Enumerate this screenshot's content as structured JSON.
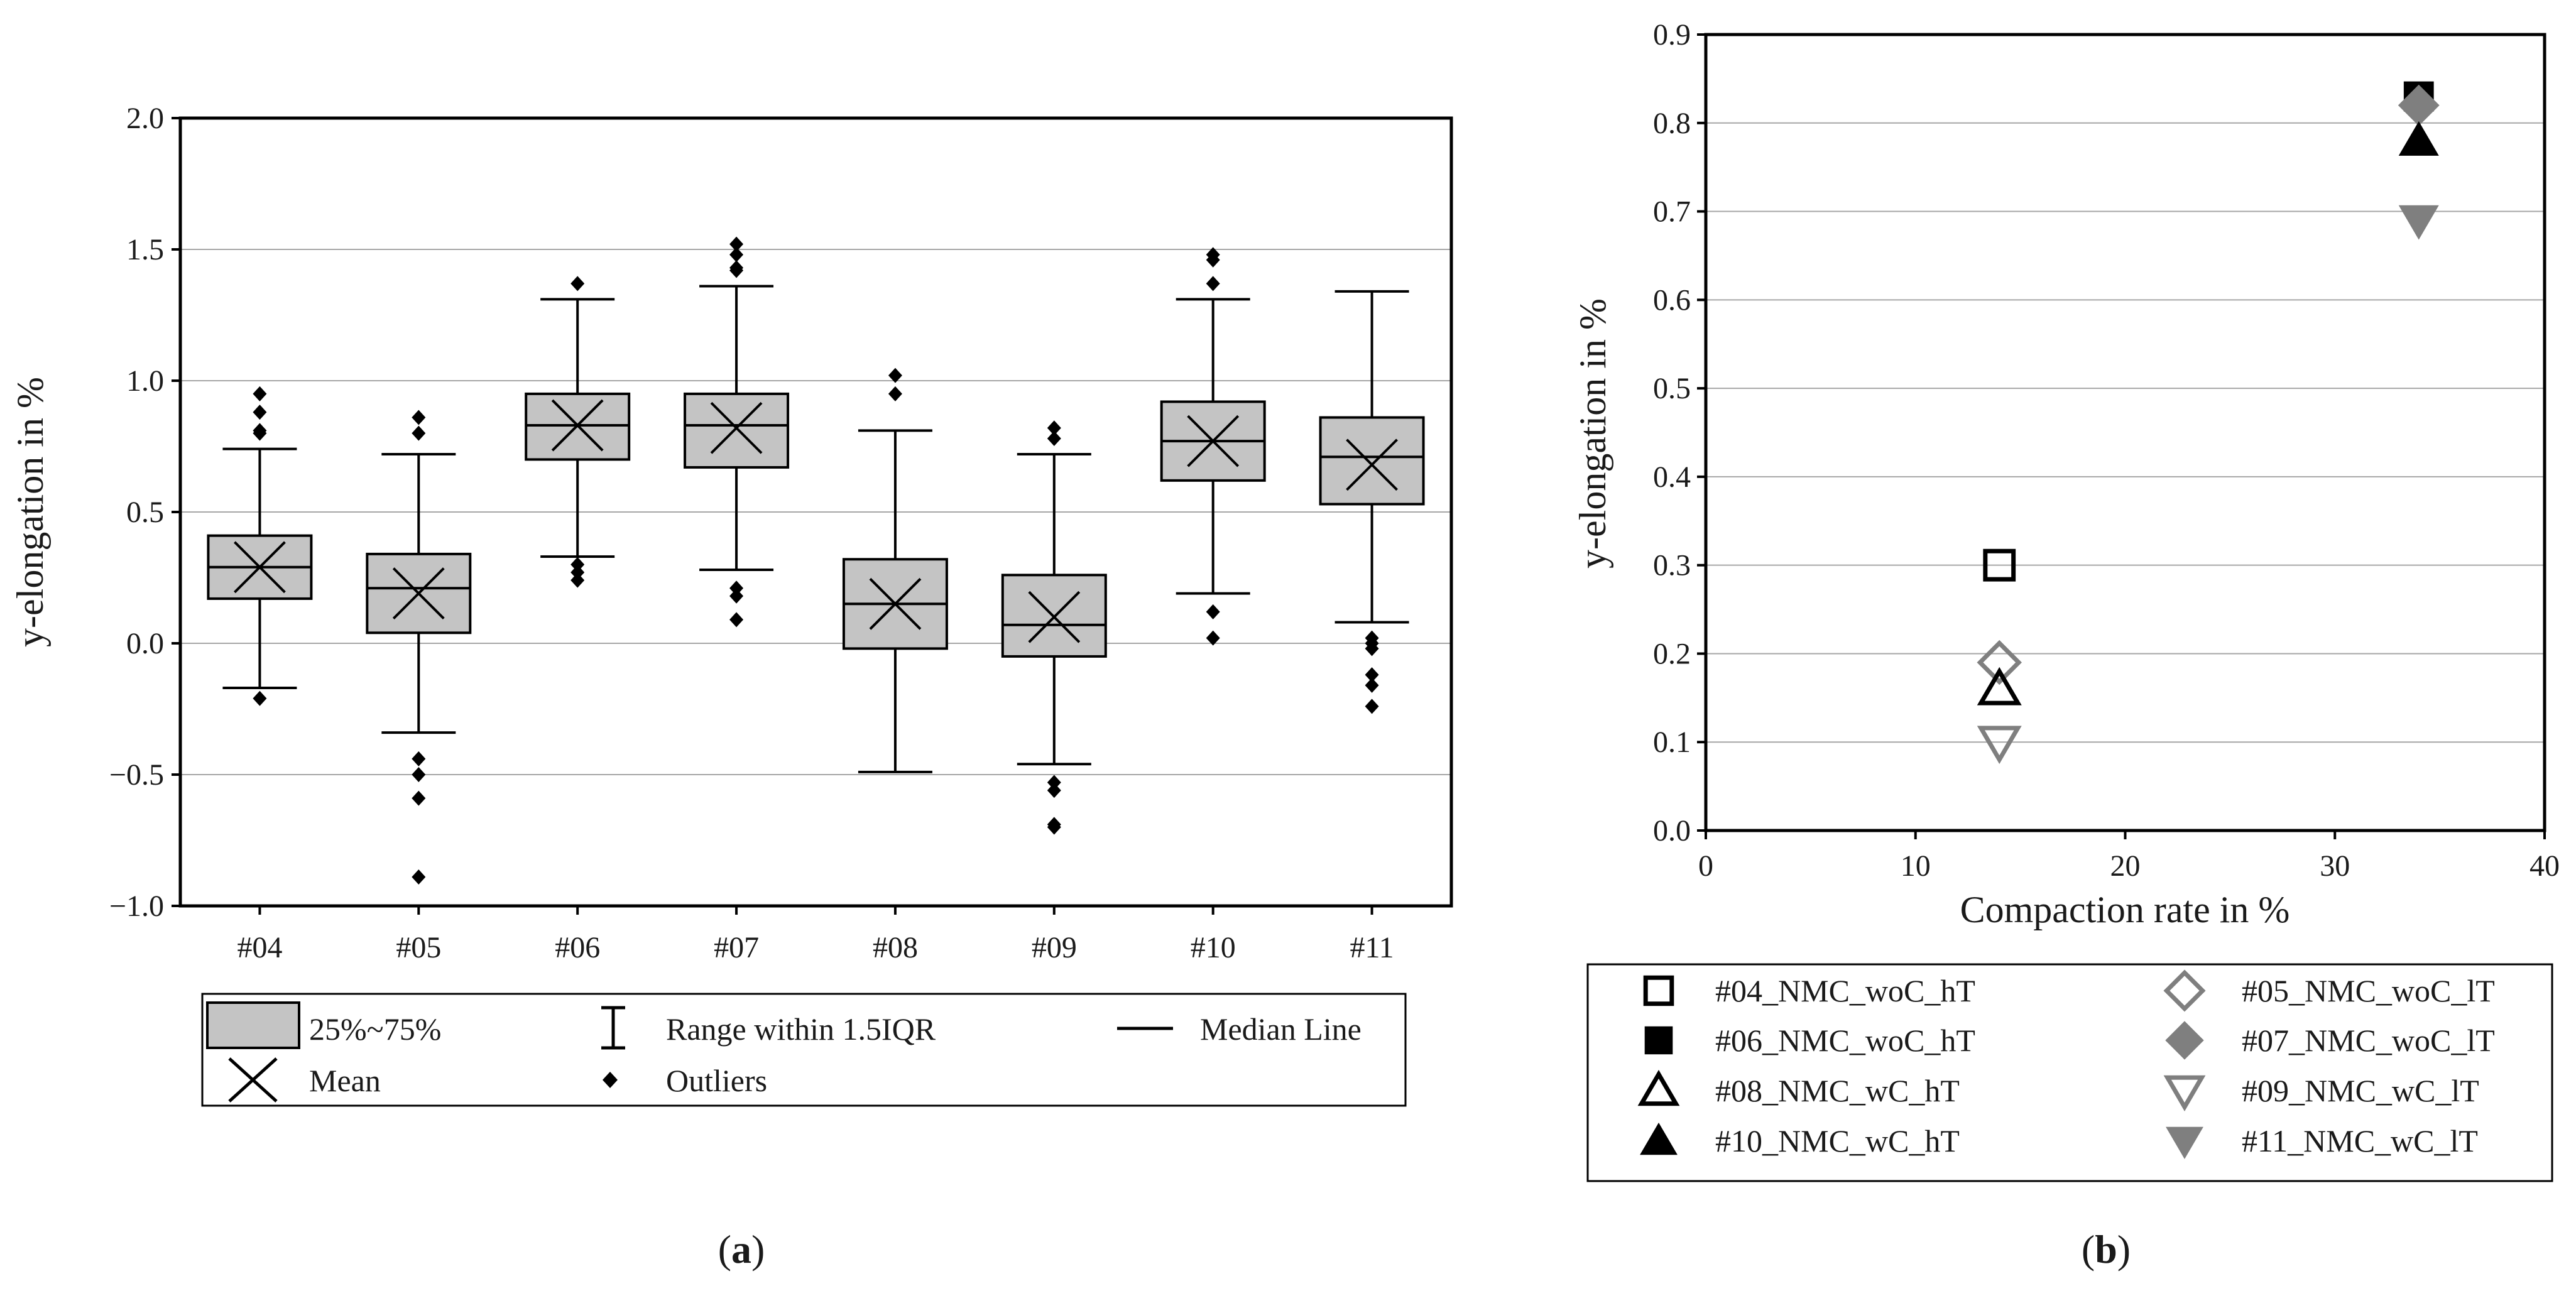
{
  "chart_data": [
    {
      "type": "box",
      "panel_label": "(a)",
      "ylabel": "y-elongation in %",
      "ylim": [
        -1.0,
        2.0
      ],
      "yticks": [
        -1.0,
        -0.5,
        0.0,
        0.5,
        1.0,
        1.5,
        2.0
      ],
      "ytick_labels": [
        "−1.0",
        "−0.5",
        "0.0",
        "0.5",
        "1.0",
        "1.5",
        "2.0"
      ],
      "grid": true,
      "categories": [
        "#04",
        "#05",
        "#06",
        "#07",
        "#08",
        "#09",
        "#10",
        "#11"
      ],
      "boxes": [
        {
          "q1": 0.17,
          "median": 0.29,
          "q3": 0.41,
          "mean": 0.29,
          "whisker_low": -0.17,
          "whisker_high": 0.74,
          "outliers": [
            0.95,
            0.88,
            0.81,
            0.8,
            -0.21
          ]
        },
        {
          "q1": 0.04,
          "median": 0.21,
          "q3": 0.34,
          "mean": 0.19,
          "whisker_low": -0.34,
          "whisker_high": 0.72,
          "outliers": [
            0.86,
            0.8,
            -0.44,
            -0.5,
            -0.59,
            -0.89
          ]
        },
        {
          "q1": 0.7,
          "median": 0.83,
          "q3": 0.95,
          "mean": 0.83,
          "whisker_low": 0.33,
          "whisker_high": 1.31,
          "outliers": [
            1.37,
            0.3,
            0.27,
            0.24
          ]
        },
        {
          "q1": 0.67,
          "median": 0.83,
          "q3": 0.95,
          "mean": 0.82,
          "whisker_low": 0.28,
          "whisker_high": 1.36,
          "outliers": [
            1.52,
            1.48,
            1.43,
            1.42,
            0.21,
            0.18,
            0.09
          ]
        },
        {
          "q1": -0.02,
          "median": 0.15,
          "q3": 0.32,
          "mean": 0.15,
          "whisker_low": -0.49,
          "whisker_high": 0.81,
          "outliers": [
            1.02,
            0.95
          ]
        },
        {
          "q1": -0.05,
          "median": 0.07,
          "q3": 0.26,
          "mean": 0.1,
          "whisker_low": -0.46,
          "whisker_high": 0.72,
          "outliers": [
            0.82,
            0.78,
            -0.53,
            -0.56,
            -0.69,
            -0.7
          ]
        },
        {
          "q1": 0.62,
          "median": 0.77,
          "q3": 0.92,
          "mean": 0.77,
          "whisker_low": 0.19,
          "whisker_high": 1.31,
          "outliers": [
            1.48,
            1.46,
            1.37,
            0.12,
            0.02
          ]
        },
        {
          "q1": 0.53,
          "median": 0.71,
          "q3": 0.86,
          "mean": 0.68,
          "whisker_low": 0.08,
          "whisker_high": 1.34,
          "outliers": [
            0.02,
            0.0,
            -0.02,
            -0.12,
            -0.16,
            -0.24
          ]
        }
      ],
      "legend": {
        "placement": "below",
        "entries": [
          {
            "symbol": "box",
            "label": "25%~75%"
          },
          {
            "symbol": "range",
            "label": "Range within 1.5IQR"
          },
          {
            "symbol": "median",
            "label": "Median Line"
          },
          {
            "symbol": "mean",
            "label": "Mean"
          },
          {
            "symbol": "outlier",
            "label": "Outliers"
          }
        ]
      }
    },
    {
      "type": "scatter",
      "panel_label": "(b)",
      "xlabel": "Compaction rate in %",
      "ylabel": "y-elongation in %",
      "xlim": [
        0,
        40
      ],
      "ylim": [
        0.0,
        0.9
      ],
      "xticks": [
        0,
        10,
        20,
        30,
        40
      ],
      "xtick_labels": [
        "0",
        "10",
        "20",
        "30",
        "40"
      ],
      "yticks": [
        0.0,
        0.1,
        0.2,
        0.3,
        0.4,
        0.5,
        0.6,
        0.7,
        0.8,
        0.9
      ],
      "ytick_labels": [
        "0.0",
        "0.1",
        "0.2",
        "0.3",
        "0.4",
        "0.5",
        "0.6",
        "0.7",
        "0.8",
        "0.9"
      ],
      "grid": true,
      "series": [
        {
          "name": "#04_NMC_woC_hT",
          "marker": "square",
          "fill": "none",
          "color": "#000000",
          "x": 14,
          "y": 0.3
        },
        {
          "name": "#05_NMC_woC_lT",
          "marker": "diamond",
          "fill": "none",
          "color": "#7f7f7f",
          "x": 14,
          "y": 0.19
        },
        {
          "name": "#06_NMC_woC_hT",
          "marker": "square",
          "fill": "solid",
          "color": "#000000",
          "x": 34,
          "y": 0.83
        },
        {
          "name": "#07_NMC_woC_lT",
          "marker": "diamond",
          "fill": "solid",
          "color": "#7f7f7f",
          "x": 34,
          "y": 0.82
        },
        {
          "name": "#08_NMC_wC_hT",
          "marker": "triangle-up",
          "fill": "none",
          "color": "#000000",
          "x": 14,
          "y": 0.16
        },
        {
          "name": "#09_NMC_wC_lT",
          "marker": "triangle-down",
          "fill": "none",
          "color": "#7f7f7f",
          "x": 14,
          "y": 0.1
        },
        {
          "name": "#10_NMC_wC_hT",
          "marker": "triangle-up",
          "fill": "solid",
          "color": "#000000",
          "x": 34,
          "y": 0.78
        },
        {
          "name": "#11_NMC_wC_lT",
          "marker": "triangle-down",
          "fill": "solid",
          "color": "#7f7f7f",
          "x": 34,
          "y": 0.69
        }
      ],
      "legend": {
        "placement": "below",
        "columns": 2
      }
    }
  ],
  "colors": {
    "box_fill": "#c4c4c4",
    "grid": "#a6a6a6",
    "black": "#000000",
    "gray": "#7f7f7f"
  }
}
